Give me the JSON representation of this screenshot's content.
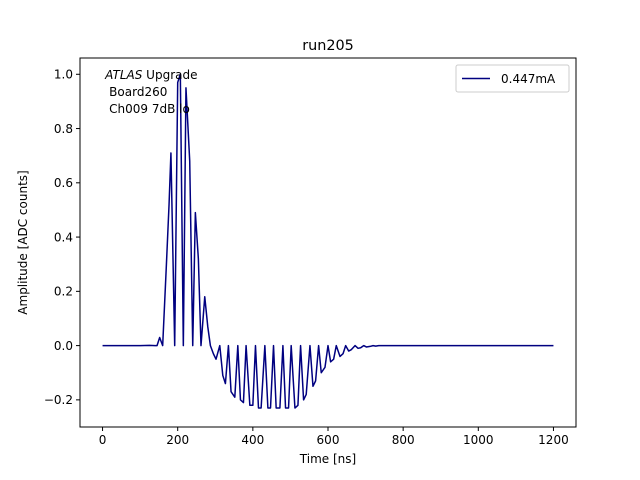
{
  "chart_data": {
    "type": "line",
    "title": "run205",
    "xlabel": "Time [ns]",
    "ylabel": "Amplitude [ADC counts]",
    "xlim": [
      -60,
      1260
    ],
    "ylim": [
      -0.3,
      1.06
    ],
    "xticks": [
      0,
      200,
      400,
      600,
      800,
      1000,
      1200
    ],
    "xtick_labels": [
      "0",
      "200",
      "400",
      "600",
      "800",
      "1000",
      "1200"
    ],
    "yticks": [
      -0.2,
      0.0,
      0.2,
      0.4,
      0.6,
      0.8,
      1.0
    ],
    "ytick_labels": [
      "−0.2",
      "0.0",
      "0.2",
      "0.4",
      "0.6",
      "0.8",
      "1.0"
    ],
    "grid": false,
    "legend_position": "top-right",
    "annotation": {
      "line1_italic": "ATLAS",
      "line1_rest": " Upgrade",
      "line2": "Board260",
      "line3": "Ch009 7dB lo"
    },
    "series": [
      {
        "name": "0.447mA",
        "color": "#000080",
        "sample_interval_ns": 6.25,
        "pulse_x": [
          0,
          25,
          50,
          75,
          100,
          125,
          150,
          175,
          200,
          225,
          250,
          275,
          300,
          325,
          350,
          375,
          400,
          425,
          450,
          475,
          500,
          525,
          550,
          575,
          600,
          625,
          650,
          675,
          700,
          725,
          750,
          775,
          800,
          825,
          850,
          875,
          900,
          925,
          950,
          975,
          1000,
          1025,
          1050,
          1075,
          1100,
          1125,
          1150,
          1175,
          1200
        ],
        "pulse_values": [
          0.0,
          0.0,
          0.0,
          0.0,
          0.0,
          0.001,
          0.001,
          0.0,
          0.0,
          0.0,
          0.0,
          0.0,
          0.0,
          0.0,
          0.0,
          0.0,
          0.0,
          0.0,
          0.0,
          0.0,
          0.0,
          0.0,
          0.0,
          0.0,
          0.0,
          0.0,
          0.0,
          0.0,
          0.0,
          0.0,
          0.0,
          0.0,
          0.0,
          0.0,
          0.0,
          0.0,
          0.0,
          0.0,
          0.0,
          0.0,
          0.0,
          0.0,
          0.0,
          0.0,
          0.0,
          0.0,
          0.0,
          0.0,
          0.0
        ],
        "burst_x": [
          140,
          145,
          152,
          160,
          170,
          177,
          182,
          192,
          200,
          207,
          215,
          222,
          232,
          240,
          247,
          255,
          262,
          272,
          280,
          287,
          295,
          302,
          312,
          320,
          327,
          335,
          342,
          352,
          360,
          367,
          375,
          382,
          392,
          400,
          407,
          415,
          422,
          432,
          440,
          447,
          455,
          462,
          472,
          480,
          487,
          495,
          502,
          512,
          520,
          527,
          535,
          542,
          552,
          560,
          567,
          575,
          582,
          592,
          600,
          607,
          615,
          622,
          632,
          640,
          647,
          655,
          662,
          672,
          680,
          687,
          695,
          702,
          712,
          720,
          727,
          735,
          742,
          752,
          760,
          767,
          775,
          782,
          792,
          800,
          807,
          815,
          822,
          832,
          840,
          847,
          855,
          862,
          872,
          880,
          887
        ],
        "burst_values": [
          0.0,
          0.0,
          0.03,
          0.0,
          0.3,
          0.52,
          0.71,
          0.0,
          0.97,
          1.0,
          0.0,
          0.95,
          0.68,
          0.0,
          0.49,
          0.32,
          0.0,
          0.18,
          0.07,
          0.0,
          -0.03,
          -0.05,
          0.0,
          -0.11,
          -0.14,
          0.0,
          -0.17,
          -0.19,
          0.0,
          -0.2,
          -0.21,
          0.0,
          -0.22,
          -0.22,
          0.0,
          -0.23,
          -0.23,
          0.0,
          -0.23,
          -0.23,
          0.0,
          -0.23,
          -0.23,
          0.0,
          -0.23,
          -0.23,
          0.0,
          -0.23,
          -0.22,
          0.0,
          -0.2,
          -0.18,
          0.0,
          -0.15,
          -0.13,
          0.0,
          -0.1,
          -0.08,
          0.0,
          -0.06,
          -0.05,
          0.0,
          -0.04,
          -0.03,
          0.0,
          -0.02,
          -0.015,
          0.0,
          -0.01,
          -0.008,
          0.0,
          -0.005,
          -0.003,
          0.0,
          -0.002,
          0.0,
          0.0,
          0.0,
          0.0,
          0.0,
          0.0,
          0.0,
          0.0,
          0.0,
          0.0,
          0.0,
          0.0,
          0.0,
          0.0,
          0.0,
          0.0,
          0.0,
          0.0,
          0.0,
          0.0
        ]
      }
    ]
  }
}
